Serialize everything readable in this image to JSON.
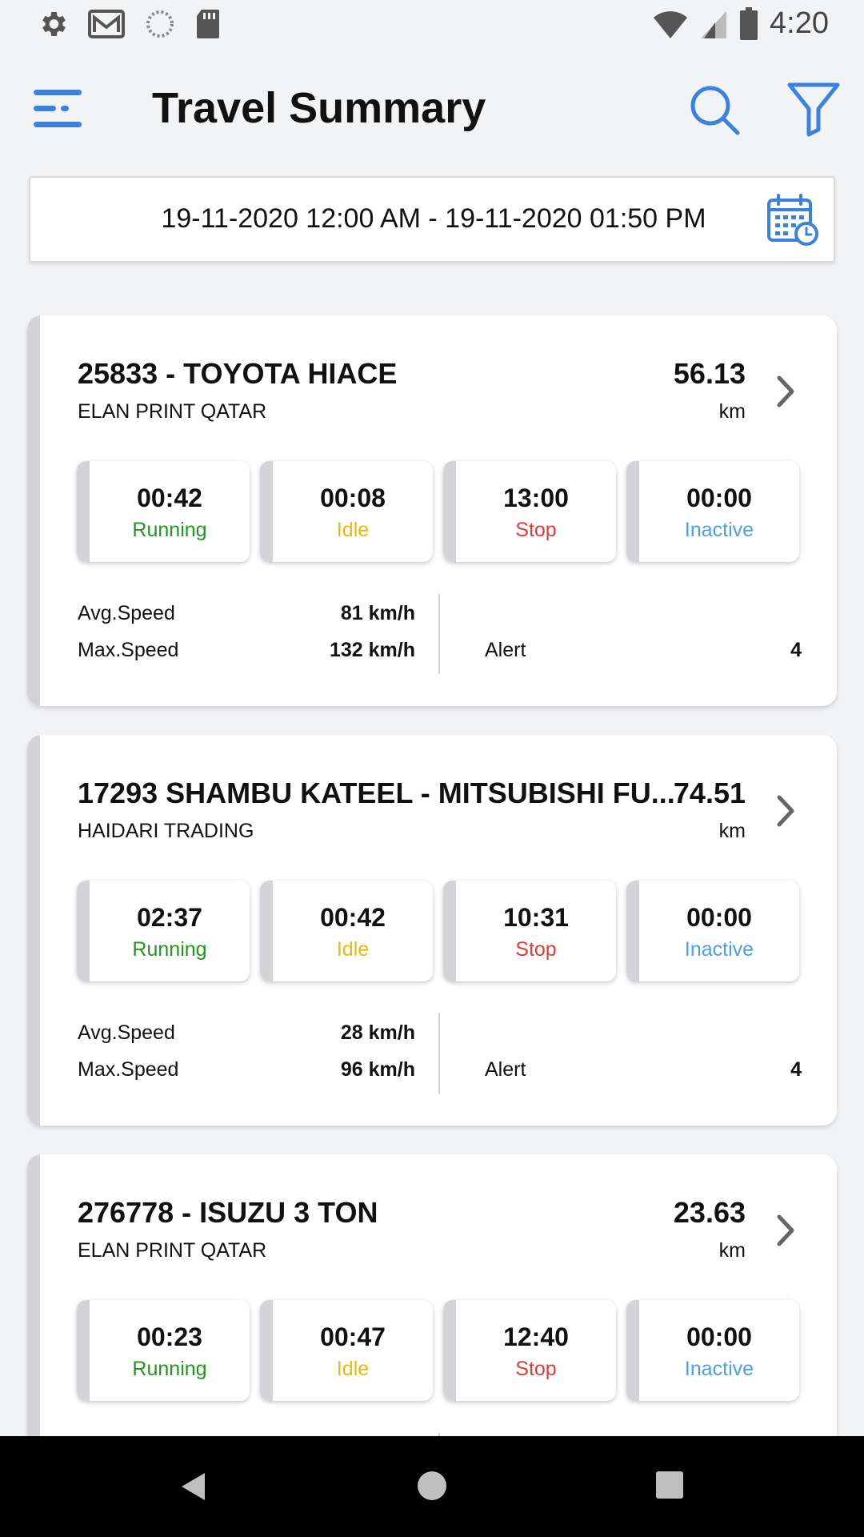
{
  "status_bar": {
    "time": "4:20",
    "icons": [
      "settings-icon",
      "gmail-icon",
      "sync-icon",
      "sd-card-icon",
      "wifi-icon",
      "signal-icon",
      "battery-icon"
    ]
  },
  "app_bar": {
    "title": "Travel Summary",
    "icons": [
      "menu-icon",
      "search-icon",
      "filter-icon"
    ]
  },
  "date_range": {
    "text": "19-11-2020 12:00 AM - 19-11-2020 01:50 PM",
    "icon": "calendar-clock-icon"
  },
  "colors": {
    "accent": "#3b82e0",
    "running": "#1b9a1b",
    "idle": "#f2b705",
    "stop": "#e53935",
    "inactive": "#4a9fe8"
  },
  "labels": {
    "running": "Running",
    "idle": "Idle",
    "stop": "Stop",
    "inactive": "Inactive",
    "avg_speed": "Avg.Speed",
    "max_speed": "Max.Speed",
    "alert": "Alert",
    "unit": "km"
  },
  "vehicles": [
    {
      "title": "25833 - TOYOTA HIACE",
      "company": "ELAN PRINT QATAR",
      "distance": "56.13",
      "running": "00:42",
      "idle": "00:08",
      "stop": "13:00",
      "inactive": "00:00",
      "avg_speed": "81 km/h",
      "max_speed": "132 km/h",
      "alert": "4"
    },
    {
      "title": "17293 SHAMBU KATEEL - MITSUBISHI FU...",
      "company": "HAIDARI TRADING",
      "distance": "74.51",
      "running": "02:37",
      "idle": "00:42",
      "stop": "10:31",
      "inactive": "00:00",
      "avg_speed": "28 km/h",
      "max_speed": "96 km/h",
      "alert": "4"
    },
    {
      "title": "276778 - ISUZU 3 TON",
      "company": "ELAN PRINT QATAR",
      "distance": "23.63",
      "running": "00:23",
      "idle": "00:47",
      "stop": "12:40",
      "inactive": "00:00"
    }
  ]
}
